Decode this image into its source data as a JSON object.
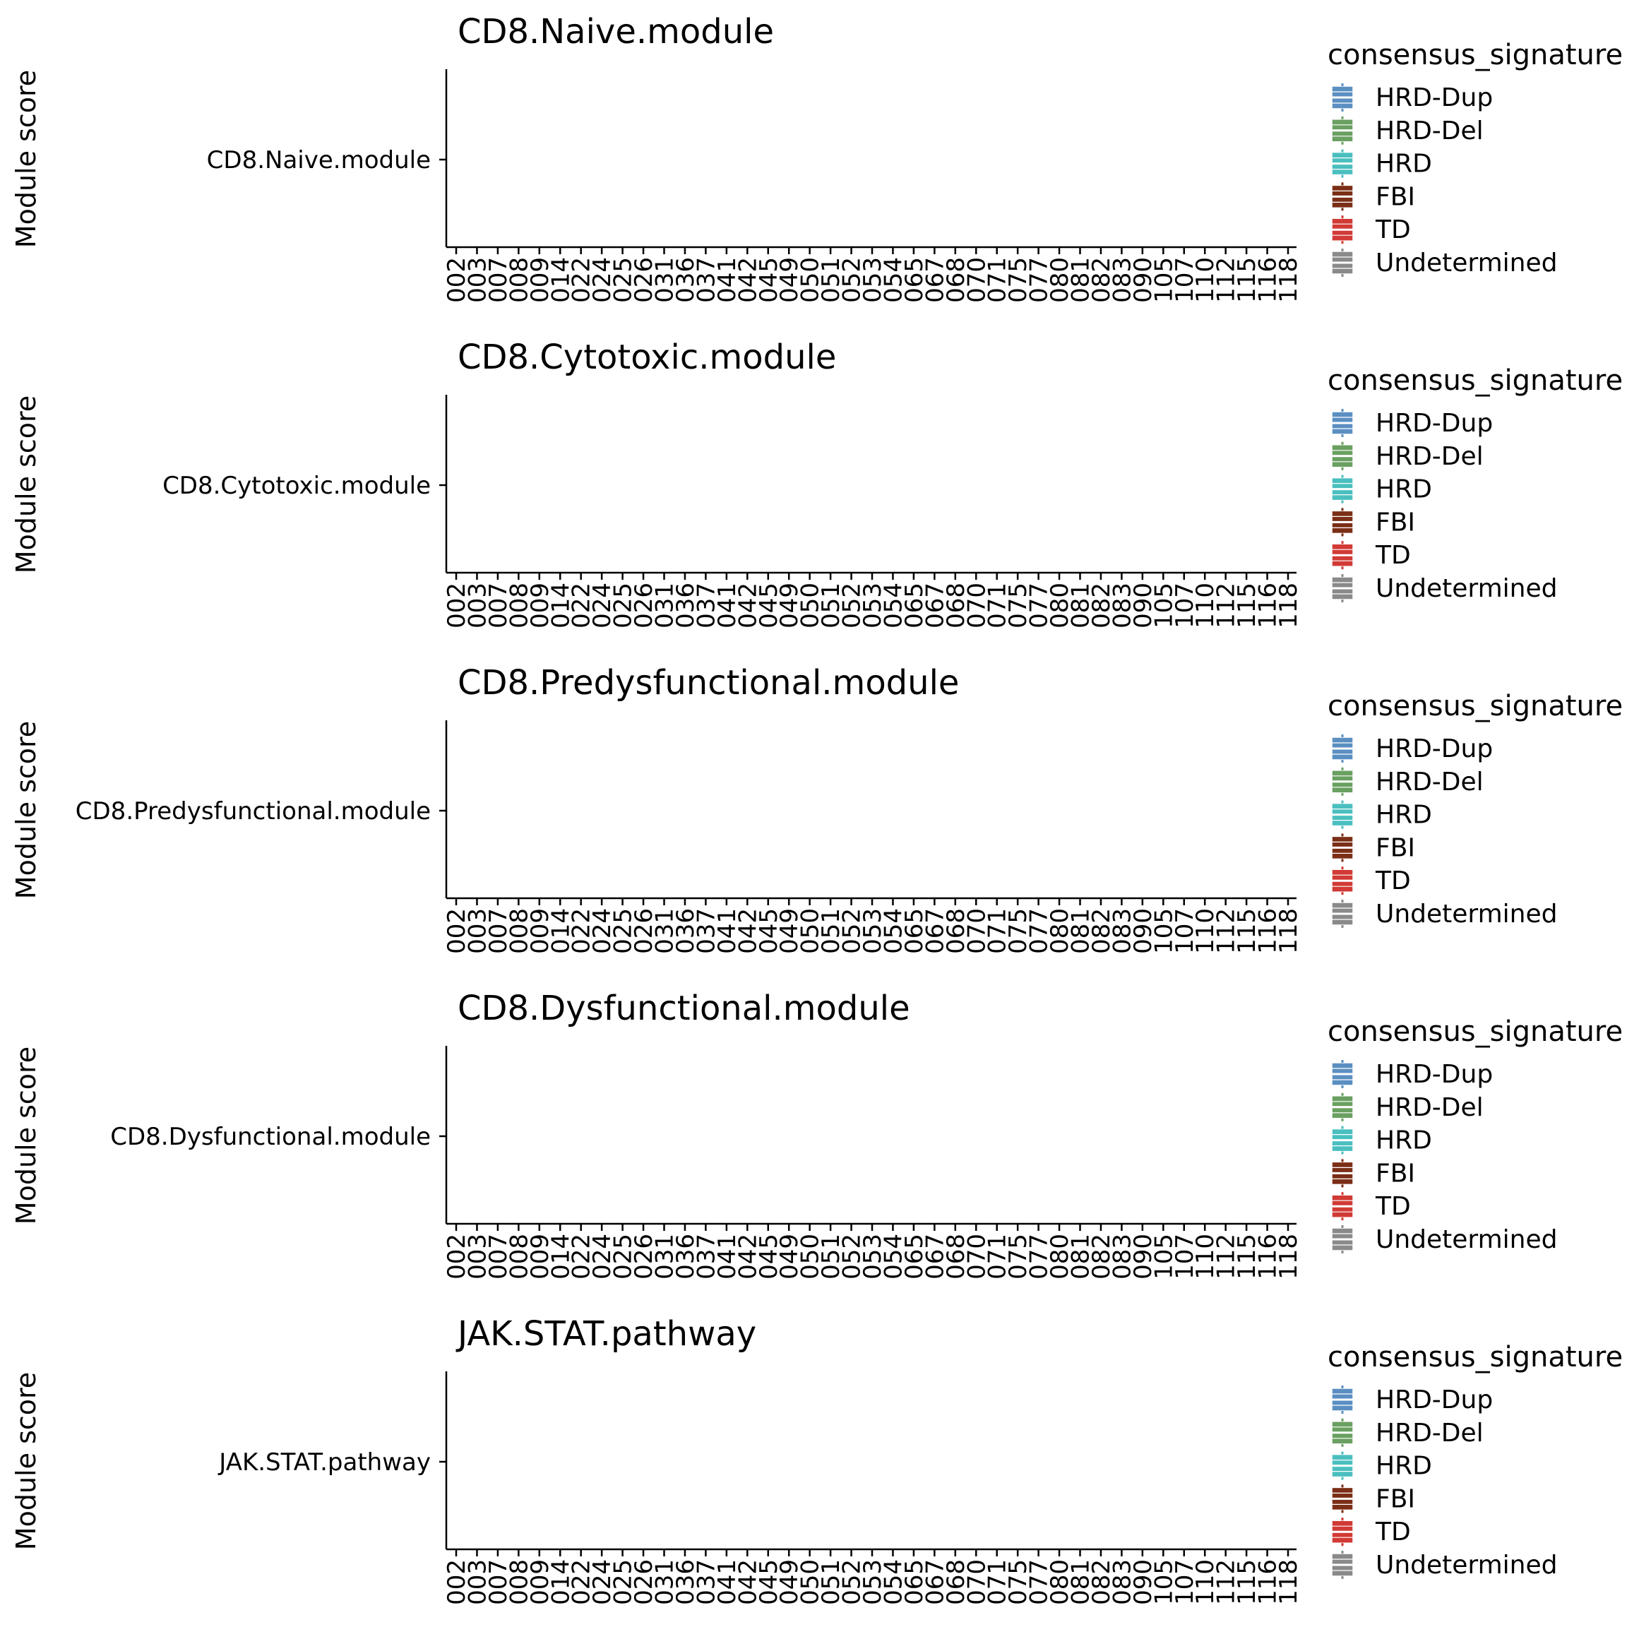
{
  "chart_data": [
    {
      "type": "boxplot",
      "title": "CD8.Naive.module",
      "ylabel": "Module score",
      "xlabel": "",
      "y_categories": [
        "CD8.Naive.module"
      ],
      "categories": [
        "002",
        "003",
        "007",
        "008",
        "009",
        "014",
        "022",
        "024",
        "025",
        "026",
        "031",
        "036",
        "037",
        "041",
        "042",
        "045",
        "049",
        "050",
        "051",
        "052",
        "053",
        "054",
        "065",
        "067",
        "068",
        "070",
        "071",
        "075",
        "077",
        "080",
        "081",
        "082",
        "083",
        "090",
        "105",
        "107",
        "110",
        "112",
        "115",
        "116",
        "118"
      ],
      "series": [],
      "legend": {
        "title": "consensus_signature",
        "position": "right",
        "items": [
          {
            "label": "HRD-Dup",
            "color": "#5b8fc2"
          },
          {
            "label": "HRD-Del",
            "color": "#6aa061"
          },
          {
            "label": "HRD",
            "color": "#4bbfbf"
          },
          {
            "label": "FBI",
            "color": "#7b2e16"
          },
          {
            "label": "TD",
            "color": "#d13a35"
          },
          {
            "label": "Undetermined",
            "color": "#8a8a8a"
          }
        ]
      },
      "grid": false
    },
    {
      "type": "boxplot",
      "title": "CD8.Cytotoxic.module",
      "ylabel": "Module score",
      "xlabel": "",
      "y_categories": [
        "CD8.Cytotoxic.module"
      ],
      "categories": [
        "002",
        "003",
        "007",
        "008",
        "009",
        "014",
        "022",
        "024",
        "025",
        "026",
        "031",
        "036",
        "037",
        "041",
        "042",
        "045",
        "049",
        "050",
        "051",
        "052",
        "053",
        "054",
        "065",
        "067",
        "068",
        "070",
        "071",
        "075",
        "077",
        "080",
        "081",
        "082",
        "083",
        "090",
        "105",
        "107",
        "110",
        "112",
        "115",
        "116",
        "118"
      ],
      "series": [],
      "legend": {
        "title": "consensus_signature",
        "position": "right",
        "items": [
          {
            "label": "HRD-Dup",
            "color": "#5b8fc2"
          },
          {
            "label": "HRD-Del",
            "color": "#6aa061"
          },
          {
            "label": "HRD",
            "color": "#4bbfbf"
          },
          {
            "label": "FBI",
            "color": "#7b2e16"
          },
          {
            "label": "TD",
            "color": "#d13a35"
          },
          {
            "label": "Undetermined",
            "color": "#8a8a8a"
          }
        ]
      },
      "grid": false
    },
    {
      "type": "boxplot",
      "title": "CD8.Predysfunctional.module",
      "ylabel": "Module score",
      "xlabel": "",
      "y_categories": [
        "CD8.Predysfunctional.module"
      ],
      "categories": [
        "002",
        "003",
        "007",
        "008",
        "009",
        "014",
        "022",
        "024",
        "025",
        "026",
        "031",
        "036",
        "037",
        "041",
        "042",
        "045",
        "049",
        "050",
        "051",
        "052",
        "053",
        "054",
        "065",
        "067",
        "068",
        "070",
        "071",
        "075",
        "077",
        "080",
        "081",
        "082",
        "083",
        "090",
        "105",
        "107",
        "110",
        "112",
        "115",
        "116",
        "118"
      ],
      "series": [],
      "legend": {
        "title": "consensus_signature",
        "position": "right",
        "items": [
          {
            "label": "HRD-Dup",
            "color": "#5b8fc2"
          },
          {
            "label": "HRD-Del",
            "color": "#6aa061"
          },
          {
            "label": "HRD",
            "color": "#4bbfbf"
          },
          {
            "label": "FBI",
            "color": "#7b2e16"
          },
          {
            "label": "TD",
            "color": "#d13a35"
          },
          {
            "label": "Undetermined",
            "color": "#8a8a8a"
          }
        ]
      },
      "grid": false
    },
    {
      "type": "boxplot",
      "title": "CD8.Dysfunctional.module",
      "ylabel": "Module score",
      "xlabel": "",
      "y_categories": [
        "CD8.Dysfunctional.module"
      ],
      "categories": [
        "002",
        "003",
        "007",
        "008",
        "009",
        "014",
        "022",
        "024",
        "025",
        "026",
        "031",
        "036",
        "037",
        "041",
        "042",
        "045",
        "049",
        "050",
        "051",
        "052",
        "053",
        "054",
        "065",
        "067",
        "068",
        "070",
        "071",
        "075",
        "077",
        "080",
        "081",
        "082",
        "083",
        "090",
        "105",
        "107",
        "110",
        "112",
        "115",
        "116",
        "118"
      ],
      "series": [],
      "legend": {
        "title": "consensus_signature",
        "position": "right",
        "items": [
          {
            "label": "HRD-Dup",
            "color": "#5b8fc2"
          },
          {
            "label": "HRD-Del",
            "color": "#6aa061"
          },
          {
            "label": "HRD",
            "color": "#4bbfbf"
          },
          {
            "label": "FBI",
            "color": "#7b2e16"
          },
          {
            "label": "TD",
            "color": "#d13a35"
          },
          {
            "label": "Undetermined",
            "color": "#8a8a8a"
          }
        ]
      },
      "grid": false
    },
    {
      "type": "boxplot",
      "title": "JAK.STAT.pathway",
      "ylabel": "Module score",
      "xlabel": "",
      "y_categories": [
        "JAK.STAT.pathway"
      ],
      "categories": [
        "002",
        "003",
        "007",
        "008",
        "009",
        "014",
        "022",
        "024",
        "025",
        "026",
        "031",
        "036",
        "037",
        "041",
        "042",
        "045",
        "049",
        "050",
        "051",
        "052",
        "053",
        "054",
        "065",
        "067",
        "068",
        "070",
        "071",
        "075",
        "077",
        "080",
        "081",
        "082",
        "083",
        "090",
        "105",
        "107",
        "110",
        "112",
        "115",
        "116",
        "118"
      ],
      "series": [],
      "legend": {
        "title": "consensus_signature",
        "position": "right",
        "items": [
          {
            "label": "HRD-Dup",
            "color": "#5b8fc2"
          },
          {
            "label": "HRD-Del",
            "color": "#6aa061"
          },
          {
            "label": "HRD",
            "color": "#4bbfbf"
          },
          {
            "label": "FBI",
            "color": "#7b2e16"
          },
          {
            "label": "TD",
            "color": "#d13a35"
          },
          {
            "label": "Undetermined",
            "color": "#8a8a8a"
          }
        ]
      },
      "grid": false
    }
  ]
}
